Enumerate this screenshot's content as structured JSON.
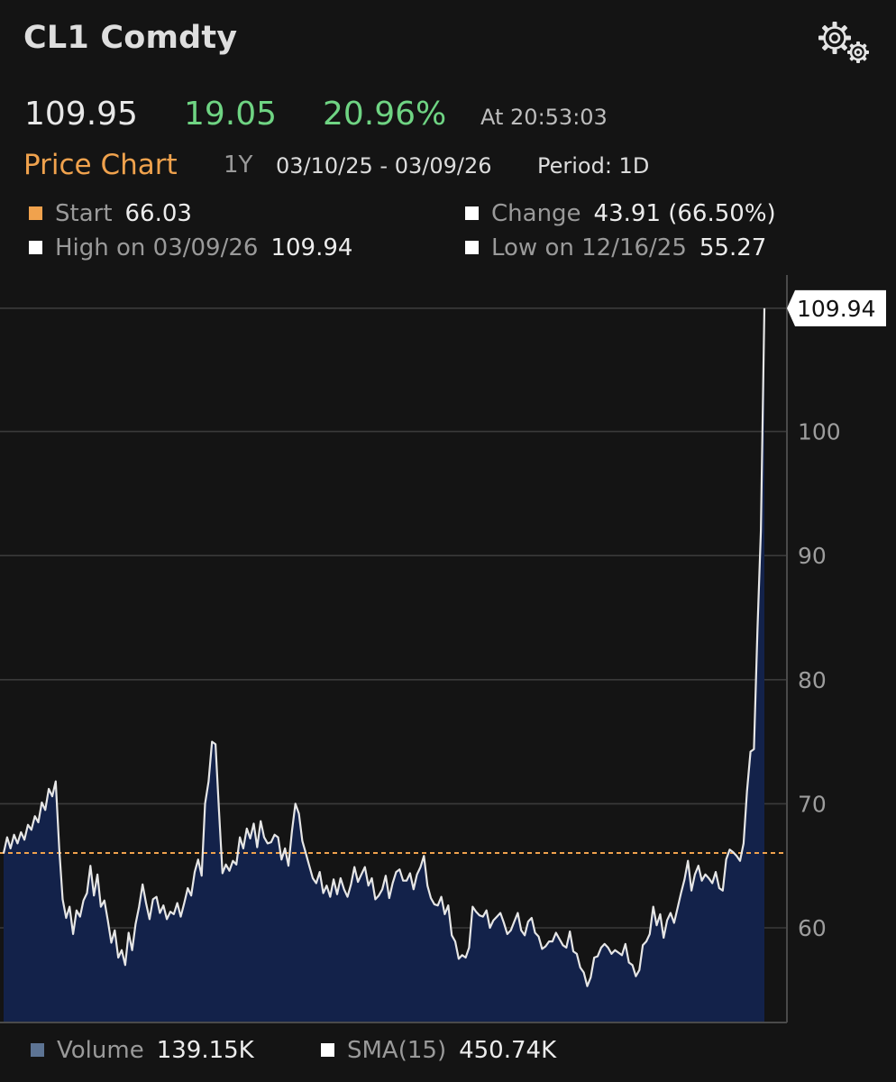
{
  "header": {
    "title": "CL1 Comdty",
    "settings_icon": "gears-icon"
  },
  "quote": {
    "last": "109.95",
    "change": "19.05",
    "pct_change": "20.96%",
    "time": "At 20:53:03",
    "colors": {
      "up": "#6fd483",
      "text": "#e8e8e8"
    }
  },
  "chart_header": {
    "title": "Price Chart",
    "range": "1Y",
    "dates": "03/10/25 - 03/09/26",
    "period": "Period: 1D",
    "accent": "#f0a24d"
  },
  "stats": {
    "start": {
      "label": "Start",
      "value": "66.03",
      "color": "#f0a24d"
    },
    "change": {
      "label": "Change",
      "value": "43.91 (66.50%)",
      "color": "#ffffff"
    },
    "high": {
      "label": "High on 03/09/26",
      "value": "109.94",
      "color": "#ffffff"
    },
    "low": {
      "label": "Low on 12/16/25",
      "value": "55.27",
      "color": "#ffffff"
    }
  },
  "legend": {
    "volume": {
      "label": "Volume",
      "value": "139.15K",
      "color": "#5d7494"
    },
    "sma": {
      "label": "SMA(15)",
      "value": "450.74K",
      "color": "#ffffff"
    }
  },
  "chart_data": {
    "type": "area",
    "title": "",
    "xlabel": "",
    "ylabel": "",
    "ylim": [
      52.4,
      112.4
    ],
    "yticks": [
      60,
      70,
      80,
      90,
      100
    ],
    "grid": true,
    "reference_line": {
      "value": 66.03,
      "style": "dashed",
      "color": "#f0a24d"
    },
    "last_label": "109.94",
    "fill_color": "#13224a",
    "line_color": "#e6e6e6",
    "series": [
      {
        "values": [
          66.0,
          67.3,
          66.4,
          67.5,
          66.8,
          67.7,
          67.1,
          68.3,
          67.9,
          69.0,
          68.5,
          70.1,
          69.5,
          71.2,
          70.6,
          71.8,
          66.4,
          62.3,
          60.8,
          61.7,
          59.5,
          61.4,
          60.9,
          62.2,
          62.8,
          65.0,
          62.6,
          64.3,
          61.7,
          62.2,
          60.6,
          58.8,
          59.8,
          57.6,
          58.2,
          57.0,
          59.6,
          58.2,
          60.3,
          61.7,
          63.5,
          62.0,
          60.7,
          62.3,
          62.5,
          61.2,
          61.8,
          60.7,
          61.3,
          61.1,
          62.0,
          60.9,
          62.0,
          63.2,
          62.6,
          64.5,
          65.5,
          64.2,
          70.0,
          71.8,
          75.0,
          74.8,
          69.5,
          64.4,
          65.1,
          64.6,
          65.4,
          65.1,
          67.3,
          66.4,
          68.0,
          67.2,
          68.4,
          66.5,
          68.6,
          67.3,
          66.8,
          66.9,
          67.5,
          67.3,
          65.5,
          66.4,
          65.0,
          67.8,
          70.0,
          69.2,
          67.0,
          66.0,
          65.0,
          64.0,
          63.6,
          64.5,
          62.8,
          63.4,
          62.5,
          63.9,
          62.7,
          64.0,
          63.1,
          62.5,
          63.5,
          64.9,
          63.7,
          64.3,
          64.9,
          63.4,
          64.0,
          62.3,
          62.6,
          63.1,
          64.2,
          62.4,
          63.6,
          64.5,
          64.7,
          63.8,
          63.8,
          64.4,
          63.1,
          64.3,
          64.9,
          65.8,
          63.4,
          62.4,
          61.9,
          61.8,
          62.5,
          61.1,
          61.8,
          59.4,
          58.9,
          57.5,
          57.8,
          57.6,
          58.4,
          61.7,
          61.3,
          61.0,
          60.9,
          61.4,
          60.0,
          60.6,
          60.9,
          61.2,
          60.4,
          59.5,
          59.8,
          60.5,
          61.2,
          59.8,
          59.4,
          60.5,
          60.8,
          59.6,
          59.3,
          58.3,
          58.5,
          58.9,
          58.9,
          59.6,
          59.1,
          58.6,
          58.4,
          59.7,
          58.1,
          57.9,
          56.8,
          56.4,
          55.3,
          56.0,
          57.6,
          57.7,
          58.4,
          58.7,
          58.4,
          57.9,
          58.2,
          58.0,
          57.8,
          58.7,
          57.2,
          57.0,
          56.1,
          56.6,
          58.6,
          58.9,
          59.5,
          61.7,
          60.2,
          61.1,
          59.2,
          60.6,
          61.2,
          60.4,
          61.6,
          62.8,
          63.9,
          65.4,
          63.0,
          64.3,
          65.0,
          63.8,
          64.3,
          64.0,
          63.6,
          64.5,
          63.2,
          63.0,
          65.5,
          66.3,
          66.1,
          65.8,
          65.4,
          66.8,
          71.0,
          74.2,
          74.4,
          84.0,
          92.0,
          109.94
        ]
      }
    ]
  }
}
